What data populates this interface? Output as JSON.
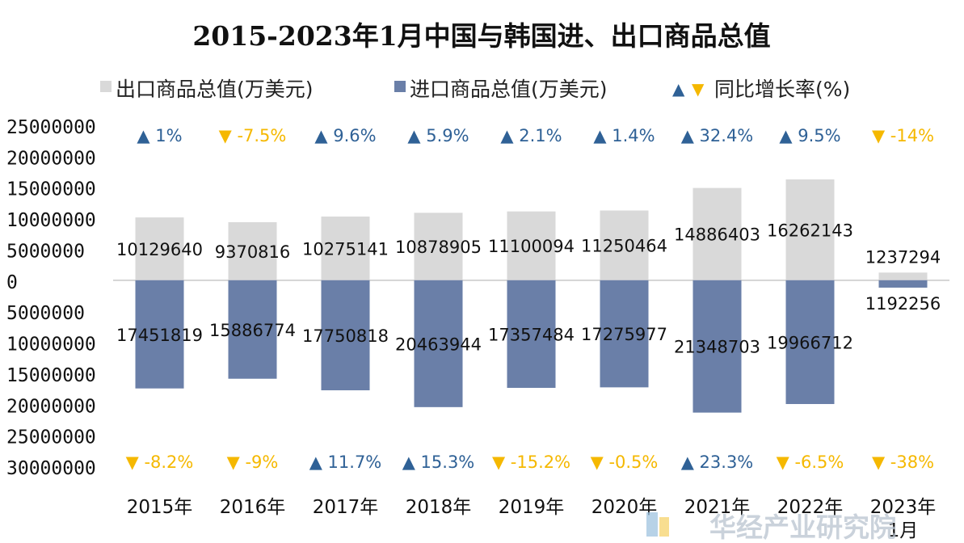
{
  "chart_data": {
    "type": "bar",
    "title": "2015-2023年1月中国与韩国进、出口商品总值",
    "categories": [
      "2015年",
      "2016年",
      "2017年",
      "2018年",
      "2019年",
      "2020年",
      "2021年",
      "2022年",
      "2023年1月"
    ],
    "series": [
      {
        "name": "出口商品总值(万美元)",
        "color": "#d9d9d9",
        "values": [
          10129640,
          9370816,
          10275141,
          10878905,
          11100094,
          11250464,
          14886403,
          16262143,
          1237294
        ],
        "labels": [
          "10129640",
          "9370816",
          "10275141",
          "10878905",
          "11100094",
          "11250464",
          "14886403",
          "16262143",
          "1237294"
        ],
        "growth_labels": [
          "1%",
          "-7.5%",
          "9.6%",
          "5.9%",
          "2.1%",
          "1.4%",
          "32.4%",
          "9.5%",
          "-14%"
        ],
        "growth_up": [
          true,
          false,
          true,
          true,
          true,
          true,
          true,
          true,
          false
        ]
      },
      {
        "name": "进口商品总值(万美元)",
        "color": "#6a7fa8",
        "values": [
          -17451819,
          -15886774,
          -17750818,
          -20463944,
          -17357484,
          -17275977,
          -21348703,
          -19966712,
          -1192256
        ],
        "labels": [
          "17451819",
          "15886774",
          "17750818",
          "20463944",
          "17357484",
          "17275977",
          "21348703",
          "19966712",
          "1192256"
        ],
        "growth_labels": [
          "-8.2%",
          "-9%",
          "11.7%",
          "15.3%",
          "-15.2%",
          "-0.5%",
          "23.3%",
          "-6.5%",
          "-38%"
        ],
        "growth_up": [
          false,
          false,
          true,
          true,
          false,
          false,
          true,
          false,
          false
        ]
      }
    ],
    "legend": {
      "export": "出口商品总值(万美元)",
      "import": "进口商品总值(万美元)",
      "growth": "同比增长率(%)",
      "up_glyph": "▲",
      "down_glyph": "▼",
      "position": "top"
    },
    "y_ticks": [
      25000000,
      20000000,
      15000000,
      10000000,
      5000000,
      0,
      -5000000,
      -10000000,
      -15000000,
      -20000000,
      -25000000,
      -30000000
    ],
    "y_tick_labels": [
      "25000000",
      "20000000",
      "15000000",
      "10000000",
      "5000000",
      "0",
      "5000000",
      "10000000",
      "15000000",
      "20000000",
      "25000000",
      "30000000"
    ],
    "ylim": [
      -30000000,
      25000000
    ],
    "up_color": "#2f6196",
    "down_color": "#f5b800",
    "watermark": "华经产业研究院"
  }
}
